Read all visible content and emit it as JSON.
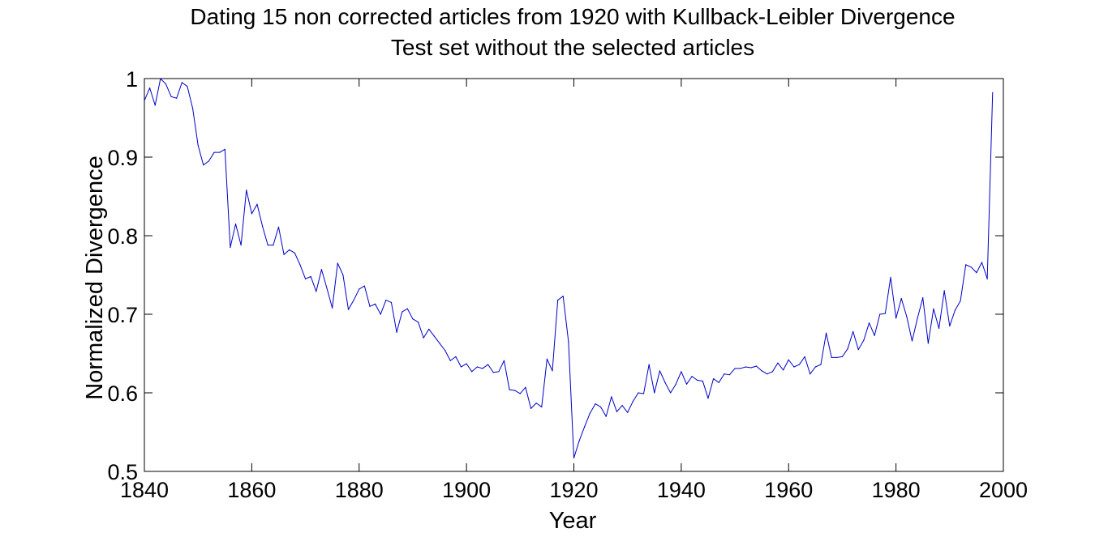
{
  "chart_data": {
    "type": "line",
    "title": "Dating 15 non corrected articles from 1920 with Kullback-Leibler Divergence",
    "subtitle": "Test set without the selected articles",
    "xlabel": "Year",
    "ylabel": "Normalized Divergence",
    "xlim": [
      1840,
      2000
    ],
    "ylim": [
      0.5,
      1
    ],
    "xticks": [
      1840,
      1860,
      1880,
      1900,
      1920,
      1940,
      1960,
      1980,
      2000
    ],
    "xtick_labels": [
      "1840",
      "1860",
      "1880",
      "1900",
      "1920",
      "1940",
      "1960",
      "1980",
      "2000"
    ],
    "yticks": [
      0.5,
      0.6,
      0.7,
      0.8,
      0.9,
      1.0
    ],
    "ytick_labels": [
      "0.5",
      "0.6",
      "0.7",
      "0.8",
      "0.9",
      "1"
    ],
    "grid": false,
    "line_color": "#0000c8",
    "series": [
      {
        "x": [
          1840,
          1841,
          1842,
          1843,
          1844,
          1845,
          1846,
          1847,
          1848,
          1849,
          1850,
          1851,
          1852,
          1853,
          1854,
          1855,
          1856,
          1857,
          1858,
          1859,
          1860,
          1861,
          1862,
          1863,
          1864,
          1865,
          1866,
          1867,
          1868,
          1869,
          1870,
          1871,
          1872,
          1873,
          1874,
          1875,
          1876,
          1877,
          1878,
          1879,
          1880,
          1881,
          1882,
          1883,
          1884,
          1885,
          1886,
          1887,
          1888,
          1889,
          1890,
          1891,
          1892,
          1893,
          1894,
          1895,
          1896,
          1897,
          1898,
          1899,
          1900,
          1901,
          1902,
          1903,
          1904,
          1905,
          1906,
          1907,
          1908,
          1909,
          1910,
          1911,
          1912,
          1913,
          1914,
          1915,
          1916,
          1917,
          1918,
          1919,
          1920,
          1921,
          1922,
          1923,
          1924,
          1925,
          1926,
          1927,
          1928,
          1929,
          1930,
          1931,
          1932,
          1933,
          1934,
          1935,
          1936,
          1937,
          1938,
          1939,
          1940,
          1941,
          1942,
          1943,
          1944,
          1945,
          1946,
          1947,
          1948,
          1949,
          1950,
          1951,
          1952,
          1953,
          1954,
          1955,
          1956,
          1957,
          1958,
          1959,
          1960,
          1961,
          1962,
          1963,
          1964,
          1965,
          1966,
          1967,
          1968,
          1969,
          1970,
          1971,
          1972,
          1973,
          1974,
          1975,
          1976,
          1977,
          1978,
          1979,
          1980,
          1981,
          1982,
          1983,
          1984,
          1985,
          1986,
          1987,
          1988,
          1989,
          1990,
          1991,
          1992,
          1993,
          1994,
          1995,
          1996,
          1997,
          1998
        ],
        "values": [
          0.972,
          0.988,
          0.966,
          1.0,
          0.993,
          0.977,
          0.975,
          0.995,
          0.99,
          0.962,
          0.915,
          0.89,
          0.895,
          0.906,
          0.906,
          0.91,
          0.785,
          0.815,
          0.788,
          0.858,
          0.828,
          0.84,
          0.812,
          0.788,
          0.788,
          0.811,
          0.776,
          0.782,
          0.778,
          0.763,
          0.745,
          0.748,
          0.729,
          0.757,
          0.733,
          0.708,
          0.765,
          0.75,
          0.706,
          0.718,
          0.732,
          0.736,
          0.71,
          0.713,
          0.7,
          0.718,
          0.715,
          0.677,
          0.703,
          0.707,
          0.694,
          0.69,
          0.67,
          0.681,
          0.672,
          0.663,
          0.654,
          0.641,
          0.646,
          0.633,
          0.637,
          0.627,
          0.633,
          0.631,
          0.636,
          0.626,
          0.627,
          0.641,
          0.604,
          0.603,
          0.599,
          0.607,
          0.58,
          0.587,
          0.582,
          0.643,
          0.628,
          0.718,
          0.723,
          0.665,
          0.517,
          0.539,
          0.557,
          0.574,
          0.586,
          0.582,
          0.57,
          0.595,
          0.576,
          0.584,
          0.575,
          0.589,
          0.6,
          0.599,
          0.636,
          0.6,
          0.628,
          0.613,
          0.6,
          0.611,
          0.627,
          0.611,
          0.621,
          0.616,
          0.615,
          0.593,
          0.618,
          0.613,
          0.624,
          0.623,
          0.631,
          0.631,
          0.633,
          0.632,
          0.634,
          0.628,
          0.624,
          0.627,
          0.638,
          0.629,
          0.642,
          0.633,
          0.636,
          0.646,
          0.624,
          0.633,
          0.636,
          0.676,
          0.645,
          0.645,
          0.646,
          0.656,
          0.678,
          0.655,
          0.667,
          0.689,
          0.673,
          0.7,
          0.701,
          0.747,
          0.695,
          0.72,
          0.697,
          0.666,
          0.695,
          0.721,
          0.663,
          0.707,
          0.682,
          0.73,
          0.685,
          0.705,
          0.717,
          0.763,
          0.76,
          0.753,
          0.766,
          0.745,
          0.982
        ]
      }
    ]
  }
}
